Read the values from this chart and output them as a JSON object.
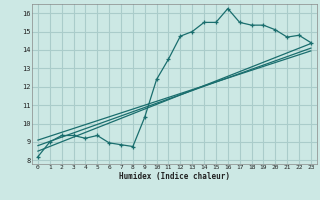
{
  "xlabel": "Humidex (Indice chaleur)",
  "bg_color": "#cce8e4",
  "grid_color": "#aaccca",
  "line_color": "#1a6e6e",
  "xlim": [
    -0.5,
    23.5
  ],
  "ylim": [
    7.8,
    16.5
  ],
  "xticks": [
    0,
    1,
    2,
    3,
    4,
    5,
    6,
    7,
    8,
    9,
    10,
    11,
    12,
    13,
    14,
    15,
    16,
    17,
    18,
    19,
    20,
    21,
    22,
    23
  ],
  "yticks": [
    8,
    9,
    10,
    11,
    12,
    13,
    14,
    15,
    16
  ],
  "line1_x": [
    0,
    1,
    2,
    3,
    4,
    5,
    6,
    7,
    8,
    9,
    10,
    11,
    12,
    13,
    14,
    15,
    16,
    17,
    18,
    19,
    20,
    21,
    22,
    23
  ],
  "line1_y": [
    8.2,
    9.0,
    9.35,
    9.35,
    9.2,
    9.35,
    8.95,
    8.85,
    8.75,
    10.35,
    12.4,
    13.5,
    14.75,
    15.0,
    15.5,
    15.5,
    16.25,
    15.5,
    15.35,
    15.35,
    15.1,
    14.7,
    14.8,
    14.4
  ],
  "line2_x": [
    0,
    23
  ],
  "line2_y": [
    8.5,
    14.35
  ],
  "line3_x": [
    0,
    23
  ],
  "line3_y": [
    8.8,
    14.1
  ],
  "line4_x": [
    0,
    23
  ],
  "line4_y": [
    9.1,
    13.95
  ]
}
